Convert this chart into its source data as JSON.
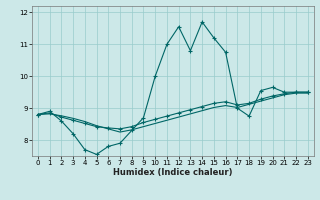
{
  "title": "",
  "xlabel": "Humidex (Indice chaleur)",
  "bg_color": "#cce8e8",
  "line_color": "#006666",
  "grid_color": "#99cccc",
  "xlim": [
    -0.5,
    23.5
  ],
  "ylim": [
    7.5,
    12.2
  ],
  "yticks": [
    8,
    9,
    10,
    11,
    12
  ],
  "xticks": [
    0,
    1,
    2,
    3,
    4,
    5,
    6,
    7,
    8,
    9,
    10,
    11,
    12,
    13,
    14,
    15,
    16,
    17,
    18,
    19,
    20,
    21,
    22,
    23
  ],
  "series1_x": [
    0,
    1,
    2,
    3,
    4,
    5,
    6,
    7,
    8,
    9,
    10,
    11,
    12,
    13,
    14,
    15,
    16,
    17,
    18,
    19,
    20,
    21,
    22,
    23
  ],
  "series1_y": [
    8.8,
    8.9,
    8.6,
    8.2,
    7.7,
    7.55,
    7.8,
    7.9,
    8.3,
    8.7,
    10.0,
    11.0,
    11.55,
    10.8,
    11.7,
    11.2,
    10.75,
    9.0,
    8.75,
    9.55,
    9.65,
    9.5,
    9.5,
    9.5
  ],
  "series2_x": [
    0,
    1,
    2,
    3,
    4,
    5,
    6,
    7,
    8,
    9,
    10,
    11,
    12,
    13,
    14,
    15,
    16,
    17,
    18,
    19,
    20,
    21,
    22,
    23
  ],
  "series2_y": [
    8.8,
    8.85,
    8.72,
    8.62,
    8.52,
    8.42,
    8.38,
    8.35,
    8.42,
    8.55,
    8.65,
    8.75,
    8.85,
    8.95,
    9.05,
    9.15,
    9.2,
    9.1,
    9.15,
    9.28,
    9.38,
    9.45,
    9.5,
    9.5
  ],
  "series3_x": [
    0,
    1,
    2,
    3,
    4,
    5,
    6,
    7,
    8,
    9,
    10,
    11,
    12,
    13,
    14,
    15,
    16,
    17,
    18,
    19,
    20,
    21,
    22,
    23
  ],
  "series3_y": [
    8.8,
    8.82,
    8.76,
    8.68,
    8.58,
    8.45,
    8.35,
    8.25,
    8.32,
    8.42,
    8.52,
    8.62,
    8.72,
    8.82,
    8.92,
    9.02,
    9.08,
    9.02,
    9.12,
    9.22,
    9.32,
    9.42,
    9.47,
    9.47
  ]
}
